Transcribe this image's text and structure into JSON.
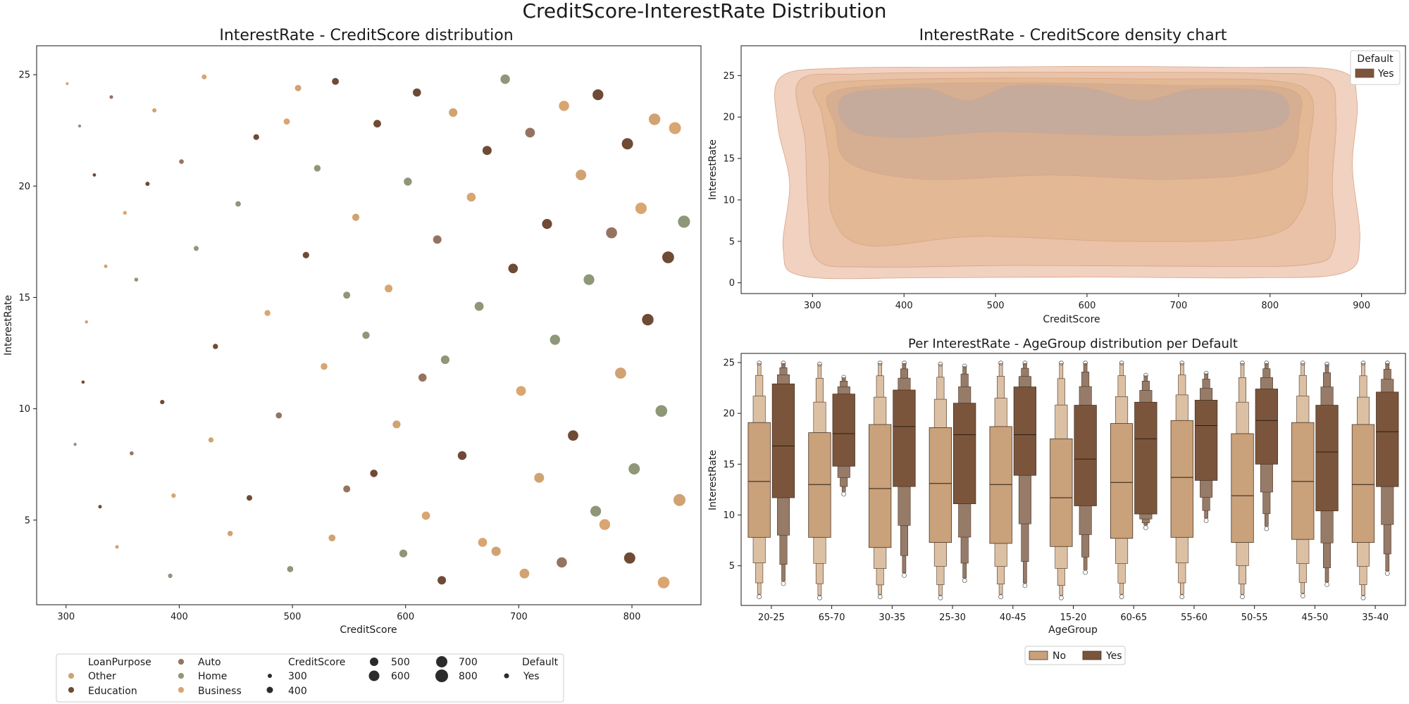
{
  "figure": {
    "suptitle": "CreditScore-InterestRate Distribution"
  },
  "colors": {
    "Other": "#d1a272",
    "Education": "#6f4a34",
    "Auto": "#967361",
    "Home": "#8e9777",
    "Business": "#d9a571",
    "Yes": "#7a553c",
    "No": "#c9a17a",
    "kde": "#e5b89f"
  },
  "chart_data": [
    {
      "id": "scatter",
      "type": "scatter",
      "title": "InterestRate - CreditScore distribution",
      "xlabel": "CreditScore",
      "ylabel": "InterestRate",
      "xlim": [
        274,
        861
      ],
      "ylim": [
        1.2,
        26.3
      ],
      "xticks": [
        300,
        400,
        500,
        600,
        700,
        800
      ],
      "yticks": [
        5,
        10,
        15,
        20,
        25
      ],
      "hue": "LoanPurpose",
      "size": "CreditScore",
      "style": "Default",
      "categories": [
        "Other",
        "Education",
        "Auto",
        "Home",
        "Business"
      ],
      "points": [
        [
          301,
          24.6,
          "Other"
        ],
        [
          312,
          22.7,
          "Home"
        ],
        [
          325,
          20.5,
          "Education"
        ],
        [
          340,
          24.0,
          "Auto"
        ],
        [
          318,
          13.9,
          "Other"
        ],
        [
          308,
          8.4,
          "Home"
        ],
        [
          330,
          5.6,
          "Education"
        ],
        [
          345,
          3.8,
          "Other"
        ],
        [
          352,
          18.8,
          "Business"
        ],
        [
          362,
          15.8,
          "Home"
        ],
        [
          378,
          23.4,
          "Other"
        ],
        [
          385,
          10.3,
          "Education"
        ],
        [
          395,
          6.1,
          "Business"
        ],
        [
          402,
          21.1,
          "Auto"
        ],
        [
          415,
          17.2,
          "Home"
        ],
        [
          422,
          24.9,
          "Business"
        ],
        [
          432,
          12.8,
          "Education"
        ],
        [
          445,
          4.4,
          "Other"
        ],
        [
          452,
          19.2,
          "Home"
        ],
        [
          468,
          22.2,
          "Education"
        ],
        [
          478,
          14.3,
          "Business"
        ],
        [
          488,
          9.7,
          "Auto"
        ],
        [
          498,
          2.8,
          "Home"
        ],
        [
          505,
          24.4,
          "Other"
        ],
        [
          512,
          16.9,
          "Education"
        ],
        [
          522,
          20.8,
          "Home"
        ],
        [
          528,
          11.9,
          "Business"
        ],
        [
          538,
          24.7,
          "Education"
        ],
        [
          548,
          6.4,
          "Auto"
        ],
        [
          556,
          18.6,
          "Other"
        ],
        [
          565,
          13.3,
          "Home"
        ],
        [
          575,
          22.8,
          "Education"
        ],
        [
          585,
          15.4,
          "Business"
        ],
        [
          592,
          9.3,
          "Other"
        ],
        [
          602,
          20.2,
          "Home"
        ],
        [
          610,
          24.2,
          "Education"
        ],
        [
          618,
          5.2,
          "Business"
        ],
        [
          628,
          17.6,
          "Auto"
        ],
        [
          635,
          12.2,
          "Home"
        ],
        [
          642,
          23.3,
          "Other"
        ],
        [
          650,
          7.9,
          "Education"
        ],
        [
          658,
          19.5,
          "Business"
        ],
        [
          665,
          14.6,
          "Home"
        ],
        [
          672,
          21.6,
          "Education"
        ],
        [
          680,
          3.6,
          "Other"
        ],
        [
          688,
          24.8,
          "Home"
        ],
        [
          695,
          16.3,
          "Education"
        ],
        [
          702,
          10.8,
          "Business"
        ],
        [
          710,
          22.4,
          "Auto"
        ],
        [
          718,
          6.9,
          "Other"
        ],
        [
          725,
          18.3,
          "Education"
        ],
        [
          732,
          13.1,
          "Home"
        ],
        [
          740,
          23.6,
          "Business"
        ],
        [
          748,
          8.8,
          "Education"
        ],
        [
          755,
          20.5,
          "Other"
        ],
        [
          762,
          15.8,
          "Home"
        ],
        [
          770,
          24.1,
          "Education"
        ],
        [
          776,
          4.8,
          "Business"
        ],
        [
          782,
          17.9,
          "Auto"
        ],
        [
          790,
          11.6,
          "Other"
        ],
        [
          796,
          21.9,
          "Education"
        ],
        [
          802,
          7.3,
          "Home"
        ],
        [
          808,
          19.0,
          "Business"
        ],
        [
          814,
          14.0,
          "Education"
        ],
        [
          820,
          23.0,
          "Other"
        ],
        [
          826,
          9.9,
          "Home"
        ],
        [
          832,
          16.8,
          "Education"
        ],
        [
          838,
          22.6,
          "Business"
        ],
        [
          842,
          5.9,
          "Other"
        ],
        [
          846,
          18.4,
          "Home"
        ],
        [
          315,
          11.2,
          "Education"
        ],
        [
          335,
          16.4,
          "Other"
        ],
        [
          358,
          8.0,
          "Auto"
        ],
        [
          372,
          20.1,
          "Education"
        ],
        [
          392,
          2.5,
          "Home"
        ],
        [
          428,
          8.6,
          "Other"
        ],
        [
          462,
          6.0,
          "Education"
        ],
        [
          495,
          22.9,
          "Business"
        ],
        [
          535,
          4.2,
          "Other"
        ],
        [
          572,
          7.1,
          "Education"
        ],
        [
          598,
          3.5,
          "Home"
        ],
        [
          632,
          2.3,
          "Education"
        ],
        [
          668,
          4.0,
          "Business"
        ],
        [
          705,
          2.6,
          "Other"
        ],
        [
          738,
          3.1,
          "Auto"
        ],
        [
          768,
          5.4,
          "Home"
        ],
        [
          798,
          3.3,
          "Education"
        ],
        [
          828,
          2.2,
          "Business"
        ],
        [
          548,
          15.1,
          "Home"
        ],
        [
          615,
          11.4,
          "Auto"
        ]
      ]
    },
    {
      "id": "kde",
      "type": "area",
      "title": "InterestRate - CreditScore density chart",
      "xlabel": "CreditScore",
      "ylabel": "InterestRate",
      "xlim": [
        222,
        948
      ],
      "ylim": [
        -1.3,
        28.6
      ],
      "xticks": [
        300,
        400,
        500,
        600,
        700,
        800,
        900
      ],
      "yticks": [
        0,
        5,
        10,
        15,
        20,
        25
      ],
      "legend_title": "Default",
      "legend_entries": [
        "Yes"
      ],
      "legend_position": "top-right",
      "levels": [
        [
          [
            265,
            24.8
          ],
          [
            330,
            25.9
          ],
          [
            450,
            26.0
          ],
          [
            600,
            26.1
          ],
          [
            760,
            26.0
          ],
          [
            875,
            25.6
          ],
          [
            895,
            22.0
          ],
          [
            890,
            14.0
          ],
          [
            898,
            5.0
          ],
          [
            880,
            1.2
          ],
          [
            780,
            0.6
          ],
          [
            600,
            0.7
          ],
          [
            420,
            0.6
          ],
          [
            290,
            0.8
          ],
          [
            268,
            4.0
          ],
          [
            275,
            12.0
          ],
          [
            262,
            19.0
          ]
        ],
        [
          [
            285,
            24.3
          ],
          [
            350,
            25.2
          ],
          [
            480,
            25.4
          ],
          [
            620,
            25.4
          ],
          [
            780,
            25.3
          ],
          [
            860,
            24.6
          ],
          [
            872,
            20.0
          ],
          [
            868,
            12.0
          ],
          [
            870,
            4.5
          ],
          [
            840,
            2.2
          ],
          [
            700,
            2.0
          ],
          [
            520,
            2.1
          ],
          [
            360,
            1.9
          ],
          [
            305,
            2.8
          ],
          [
            295,
            9.0
          ],
          [
            292,
            17.0
          ]
        ],
        [
          [
            305,
            23.7
          ],
          [
            380,
            24.5
          ],
          [
            520,
            24.7
          ],
          [
            660,
            24.6
          ],
          [
            800,
            24.4
          ],
          [
            845,
            22.5
          ],
          [
            842,
            16.0
          ],
          [
            835,
            9.0
          ],
          [
            790,
            5.5
          ],
          [
            640,
            5.0
          ],
          [
            480,
            5.6
          ],
          [
            360,
            4.5
          ],
          [
            322,
            8.0
          ],
          [
            318,
            15.0
          ],
          [
            310,
            20.5
          ]
        ],
        [
          [
            322,
            23.0
          ],
          [
            420,
            24.0
          ],
          [
            560,
            24.1
          ],
          [
            700,
            23.8
          ],
          [
            820,
            23.4
          ],
          [
            832,
            19.5
          ],
          [
            810,
            14.0
          ],
          [
            700,
            12.5
          ],
          [
            560,
            13.0
          ],
          [
            420,
            12.5
          ],
          [
            340,
            14.5
          ],
          [
            325,
            19.0
          ]
        ],
        [
          [
            335,
            22.6
          ],
          [
            420,
            23.5
          ],
          [
            470,
            22.0
          ],
          [
            520,
            23.8
          ],
          [
            600,
            23.5
          ],
          [
            660,
            22.0
          ],
          [
            720,
            23.4
          ],
          [
            810,
            22.8
          ],
          [
            812,
            19.0
          ],
          [
            740,
            18.0
          ],
          [
            620,
            17.8
          ],
          [
            500,
            18.2
          ],
          [
            400,
            17.5
          ],
          [
            340,
            18.5
          ]
        ]
      ]
    },
    {
      "id": "boxen",
      "type": "box",
      "title": "Per InterestRate - AgeGroup distribution per Default",
      "xlabel": "AgeGroup",
      "ylabel": "InterestRate",
      "ylim": [
        1.1,
        25.9
      ],
      "yticks": [
        5,
        10,
        15,
        20,
        25
      ],
      "categories": [
        "20-25",
        "65-70",
        "30-35",
        "25-30",
        "40-45",
        "15-20",
        "60-65",
        "55-60",
        "50-55",
        "45-50",
        "35-40"
      ],
      "legend_entries": [
        "No",
        "Yes"
      ],
      "legend_position": "lower-center",
      "series": [
        {
          "name": "No",
          "medians": [
            13.3,
            13.0,
            12.6,
            13.1,
            13.0,
            11.7,
            13.2,
            13.7,
            11.9,
            13.3,
            13.0
          ],
          "q1": [
            7.8,
            7.8,
            6.8,
            7.3,
            7.2,
            6.9,
            7.7,
            7.8,
            7.3,
            7.6,
            7.3
          ],
          "q3": [
            19.1,
            18.1,
            18.9,
            18.6,
            18.7,
            17.5,
            19.0,
            19.3,
            18.0,
            19.1,
            18.9
          ],
          "low": [
            2.2,
            2.1,
            2.2,
            2.1,
            2.2,
            2.1,
            2.2,
            2.2,
            2.2,
            2.3,
            2.1
          ],
          "high": [
            24.9,
            24.8,
            24.9,
            24.8,
            24.9,
            24.9,
            24.9,
            24.9,
            24.9,
            24.9,
            24.9
          ]
        },
        {
          "name": "Yes",
          "medians": [
            16.8,
            18.0,
            18.7,
            17.9,
            17.9,
            15.5,
            17.5,
            18.8,
            19.3,
            16.2,
            18.2
          ],
          "q1": [
            11.7,
            14.8,
            12.8,
            11.1,
            13.9,
            10.9,
            10.1,
            13.4,
            15.0,
            10.4,
            12.8
          ],
          "q3": [
            22.9,
            21.9,
            22.3,
            21.0,
            22.6,
            20.8,
            21.1,
            21.3,
            22.4,
            20.8,
            22.1
          ],
          "low": [
            3.5,
            12.3,
            4.3,
            3.8,
            3.3,
            4.6,
            9.0,
            9.7,
            8.9,
            3.4,
            4.5
          ],
          "high": [
            24.9,
            23.5,
            24.9,
            24.6,
            24.9,
            24.9,
            23.7,
            23.9,
            24.9,
            24.8,
            24.9
          ]
        }
      ]
    }
  ],
  "legend": {
    "hue_title": "LoanPurpose",
    "hue_items": [
      "Other",
      "Education",
      "Auto",
      "Home",
      "Business"
    ],
    "size_title": "CreditScore",
    "size_items": [
      "300",
      "400",
      "500",
      "600",
      "700",
      "800"
    ],
    "style_title": "Default",
    "style_items": [
      "Yes"
    ]
  }
}
